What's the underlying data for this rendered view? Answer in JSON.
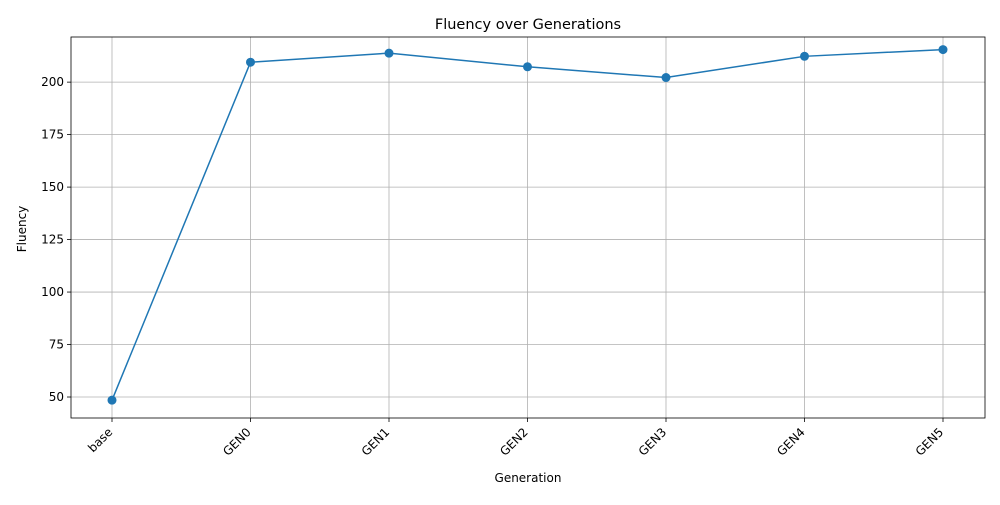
{
  "chart_data": {
    "type": "line",
    "title": "Fluency over Generations",
    "xlabel": "Generation",
    "ylabel": "Fluency",
    "categories": [
      "base",
      "GEN0",
      "GEN1",
      "GEN2",
      "GEN3",
      "GEN4",
      "GEN5"
    ],
    "series": [
      {
        "values": [
          48.5,
          209.5,
          213.8,
          207.3,
          202.2,
          212.3,
          215.5
        ]
      }
    ],
    "ylim": [
      40,
      221.5
    ],
    "yticks": [
      50,
      75,
      100,
      125,
      150,
      175,
      200
    ],
    "grid": true,
    "legend": "none",
    "colors": {
      "line": "#1f77b4",
      "marker": "#1f77b4",
      "grid": "#b0b0b0"
    }
  }
}
